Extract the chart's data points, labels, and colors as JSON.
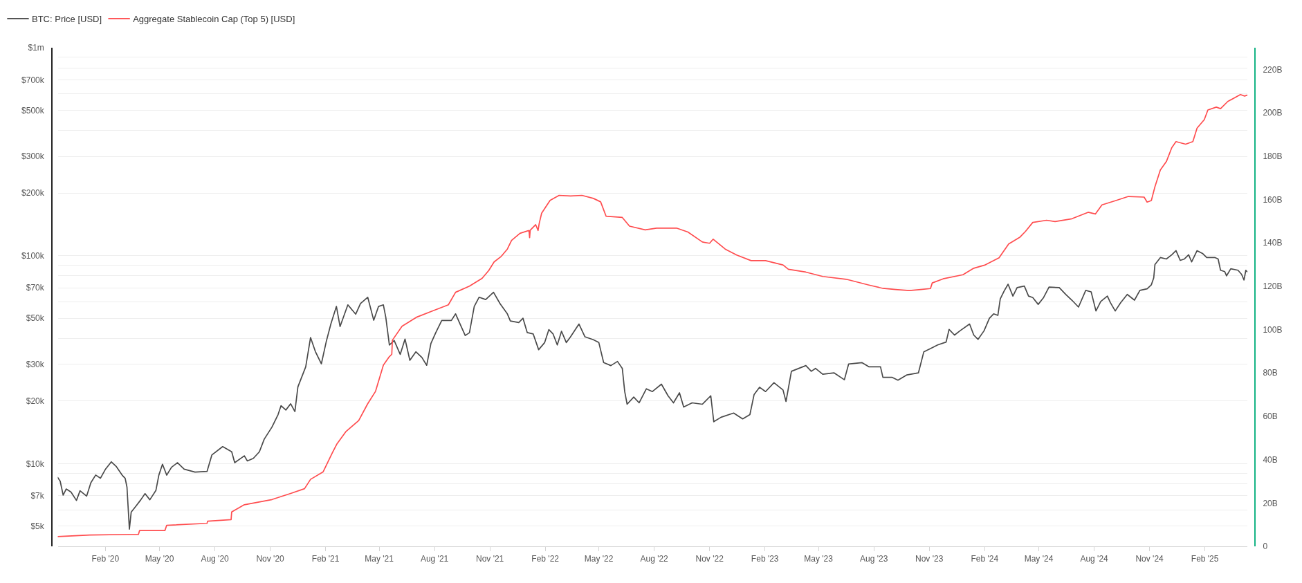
{
  "chart_data": {
    "type": "line",
    "legend": "top left",
    "grid": "y",
    "log": true,
    "line_style": "solid",
    "xlim": [
      "2019-11-14",
      "2025-04-13"
    ],
    "xticks": [
      {
        "value": "2020-02-01",
        "label": "Feb '20"
      },
      {
        "value": "2020-05-01",
        "label": "May '20"
      },
      {
        "value": "2020-08-01",
        "label": "Aug '20"
      },
      {
        "value": "2020-11-01",
        "label": "Nov '20"
      },
      {
        "value": "2021-02-01",
        "label": "Feb '21"
      },
      {
        "value": "2021-05-01",
        "label": "May '21"
      },
      {
        "value": "2021-08-01",
        "label": "Aug '21"
      },
      {
        "value": "2021-11-01",
        "label": "Nov '21"
      },
      {
        "value": "2022-02-01",
        "label": "Feb '22"
      },
      {
        "value": "2022-05-01",
        "label": "May '22"
      },
      {
        "value": "2022-08-01",
        "label": "Aug '22"
      },
      {
        "value": "2022-11-01",
        "label": "Nov '22"
      },
      {
        "value": "2023-02-01",
        "label": "Feb '23"
      },
      {
        "value": "2023-05-01",
        "label": "May '23"
      },
      {
        "value": "2023-08-01",
        "label": "Aug '23"
      },
      {
        "value": "2023-11-01",
        "label": "Nov '23"
      },
      {
        "value": "2024-02-01",
        "label": "Feb '24"
      },
      {
        "value": "2024-05-01",
        "label": "May '24"
      },
      {
        "value": "2024-08-01",
        "label": "Aug '24"
      },
      {
        "value": "2024-11-01",
        "label": "Nov '24"
      },
      {
        "value": "2025-02-01",
        "label": "Feb '25"
      }
    ],
    "ylim": [
      4000,
      1000000
    ],
    "yticks": [
      {
        "value": 5000,
        "label": "$5k"
      },
      {
        "value": 6000,
        "label": null
      },
      {
        "value": 7000,
        "label": "$7k"
      },
      {
        "value": 8000,
        "label": null
      },
      {
        "value": 9000,
        "label": null
      },
      {
        "value": 10000,
        "label": "$10k"
      },
      {
        "value": 20000,
        "label": "$20k"
      },
      {
        "value": 30000,
        "label": "$30k"
      },
      {
        "value": 40000,
        "label": null
      },
      {
        "value": 50000,
        "label": "$50k"
      },
      {
        "value": 60000,
        "label": null
      },
      {
        "value": 70000,
        "label": "$70k"
      },
      {
        "value": 80000,
        "label": null
      },
      {
        "value": 90000,
        "label": null
      },
      {
        "value": 100000,
        "label": "$100k"
      },
      {
        "value": 200000,
        "label": "$200k"
      },
      {
        "value": 300000,
        "label": "$300k"
      },
      {
        "value": 400000,
        "label": null
      },
      {
        "value": 500000,
        "label": "$500k"
      },
      {
        "value": 600000,
        "label": null
      },
      {
        "value": 700000,
        "label": "$700k"
      },
      {
        "value": 800000,
        "label": null
      },
      {
        "value": 900000,
        "label": null
      },
      {
        "value": 1000000,
        "label": "$1m"
      }
    ],
    "y2lim": [
      0,
      230
    ],
    "y2ticks": [
      0,
      {
        "value": 20,
        "label": "20B"
      },
      {
        "value": 40,
        "label": "40B"
      },
      {
        "value": 60,
        "label": "60B"
      },
      {
        "value": 80,
        "label": "80B"
      },
      {
        "value": 100,
        "label": "100B"
      },
      {
        "value": 120,
        "label": "120B"
      },
      {
        "value": 140,
        "label": "140B"
      },
      {
        "value": 160,
        "label": "160B"
      },
      {
        "value": 180,
        "label": "180B"
      },
      {
        "value": 200,
        "label": "200B"
      },
      {
        "value": 220,
        "label": "220B"
      }
    ],
    "series": [
      {
        "name": "BTC: Price [USD]",
        "color": "#4a4a4a",
        "x": [
          "2019-11-14",
          "2019-11-18",
          "2019-11-23",
          "2019-11-28",
          "2019-12-06",
          "2019-12-15",
          "2019-12-21",
          "2020-01-01",
          "2020-01-08",
          "2020-01-16",
          "2020-01-24",
          "2020-02-01",
          "2020-02-11",
          "2020-02-19",
          "2020-02-29",
          "2020-03-05",
          "2020-03-08",
          "2020-03-12",
          "2020-03-15",
          "2020-03-23",
          "2020-03-31",
          "2020-04-07",
          "2020-04-15",
          "2020-04-25",
          "2020-04-30",
          "2020-05-06",
          "2020-05-13",
          "2020-05-21",
          "2020-05-31",
          "2020-06-11",
          "2020-06-29",
          "2020-07-19",
          "2020-07-27",
          "2020-08-14",
          "2020-08-29",
          "2020-09-03",
          "2020-09-19",
          "2020-09-24",
          "2020-10-04",
          "2020-10-14",
          "2020-10-22",
          "2020-11-04",
          "2020-11-14",
          "2020-11-19",
          "2020-11-27",
          "2020-12-05",
          "2020-12-12",
          "2020-12-17",
          "2020-12-30",
          "2021-01-07",
          "2021-01-15",
          "2021-01-25",
          "2021-02-02",
          "2021-02-10",
          "2021-02-19",
          "2021-02-25",
          "2021-03-10",
          "2021-03-23",
          "2021-03-31",
          "2021-04-12",
          "2021-04-22",
          "2021-04-30",
          "2021-05-08",
          "2021-05-12",
          "2021-05-18",
          "2021-05-26",
          "2021-06-05",
          "2021-06-13",
          "2021-06-21",
          "2021-07-01",
          "2021-07-11",
          "2021-07-19",
          "2021-07-26",
          "2021-08-03",
          "2021-08-13",
          "2021-08-29",
          "2021-09-05",
          "2021-09-13",
          "2021-09-21",
          "2021-09-28",
          "2021-10-06",
          "2021-10-14",
          "2021-10-25",
          "2021-11-07",
          "2021-11-18",
          "2021-11-30",
          "2021-12-05",
          "2021-12-19",
          "2021-12-26",
          "2022-01-02",
          "2022-01-12",
          "2022-01-21",
          "2022-01-31",
          "2022-02-07",
          "2022-02-14",
          "2022-02-21",
          "2022-02-28",
          "2022-03-08",
          "2022-03-15",
          "2022-03-29",
          "2022-04-08",
          "2022-04-22",
          "2022-05-01",
          "2022-05-09",
          "2022-05-21",
          "2022-06-01",
          "2022-06-09",
          "2022-06-13",
          "2022-06-17",
          "2022-06-28",
          "2022-07-07",
          "2022-07-19",
          "2022-07-29",
          "2022-08-13",
          "2022-08-24",
          "2022-09-02",
          "2022-09-12",
          "2022-09-19",
          "2022-10-03",
          "2022-10-20",
          "2022-11-03",
          "2022-11-08",
          "2022-11-20",
          "2022-12-11",
          "2022-12-26",
          "2023-01-07",
          "2023-01-14",
          "2023-01-23",
          "2023-02-02",
          "2023-02-16",
          "2023-03-03",
          "2023-03-08",
          "2023-03-17",
          "2023-04-10",
          "2023-04-19",
          "2023-04-26",
          "2023-05-08",
          "2023-05-27",
          "2023-06-13",
          "2023-06-20",
          "2023-07-12",
          "2023-07-24",
          "2023-08-12",
          "2023-08-16",
          "2023-08-31",
          "2023-09-10",
          "2023-09-25",
          "2023-10-14",
          "2023-10-23",
          "2023-11-06",
          "2023-11-15",
          "2023-11-29",
          "2023-12-04",
          "2023-12-13",
          "2023-12-22",
          "2024-01-07",
          "2024-01-14",
          "2024-01-21",
          "2024-01-31",
          "2024-02-09",
          "2024-02-16",
          "2024-02-23",
          "2024-02-27",
          "2024-03-05",
          "2024-03-11",
          "2024-03-19",
          "2024-03-26",
          "2024-04-07",
          "2024-04-14",
          "2024-04-21",
          "2024-04-30",
          "2024-05-09",
          "2024-05-18",
          "2024-06-04",
          "2024-06-15",
          "2024-06-25",
          "2024-07-06",
          "2024-07-18",
          "2024-07-27",
          "2024-08-04",
          "2024-08-12",
          "2024-08-23",
          "2024-08-28",
          "2024-09-05",
          "2024-09-14",
          "2024-09-25",
          "2024-10-07",
          "2024-10-16",
          "2024-10-28",
          "2024-11-04",
          "2024-11-08",
          "2024-11-10",
          "2024-11-19",
          "2024-11-29",
          "2024-12-08",
          "2024-12-15",
          "2024-12-22",
          "2024-12-29",
          "2025-01-05",
          "2025-01-10",
          "2025-01-19",
          "2025-01-28",
          "2025-02-04",
          "2025-02-18",
          "2025-02-23",
          "2025-02-27",
          "2025-03-06",
          "2025-03-09",
          "2025-03-16",
          "2025-03-28",
          "2025-04-03",
          "2025-04-07",
          "2025-04-10",
          "2025-04-12"
        ],
        "values": [
          8570,
          8230,
          7050,
          7550,
          7300,
          6650,
          7400,
          6980,
          8090,
          8810,
          8510,
          9370,
          10200,
          9700,
          8800,
          8500,
          7700,
          4840,
          5840,
          6250,
          6700,
          7170,
          6700,
          7420,
          8810,
          9930,
          8800,
          9600,
          10100,
          9400,
          9100,
          9170,
          11000,
          12070,
          11400,
          10100,
          10900,
          10300,
          10600,
          11400,
          13100,
          15000,
          17200,
          19000,
          18100,
          19400,
          17800,
          23400,
          29200,
          40400,
          34600,
          30200,
          38500,
          47200,
          57000,
          45600,
          58000,
          52300,
          58900,
          63100,
          48900,
          57000,
          58000,
          50600,
          37200,
          39100,
          33500,
          39700,
          31400,
          34500,
          32400,
          29700,
          37800,
          42600,
          48800,
          48800,
          52500,
          46500,
          41300,
          42600,
          57000,
          63100,
          61500,
          66700,
          58700,
          52500,
          48500,
          47700,
          50000,
          42700,
          42000,
          35300,
          38200,
          44100,
          42000,
          37200,
          43300,
          38200,
          40700,
          46900,
          40700,
          39400,
          38200,
          30600,
          29600,
          31000,
          28700,
          22200,
          19300,
          20900,
          19600,
          22900,
          22200,
          24100,
          21200,
          19600,
          21900,
          18700,
          19600,
          19300,
          21200,
          15900,
          16700,
          17500,
          16400,
          17200,
          21500,
          23300,
          22200,
          24500,
          22600,
          19900,
          27800,
          29600,
          27800,
          28700,
          26900,
          27300,
          25300,
          30100,
          30600,
          29200,
          29200,
          26000,
          26000,
          25200,
          26700,
          27300,
          34500,
          36100,
          37200,
          38400,
          44200,
          41500,
          43500,
          46900,
          41500,
          39600,
          43500,
          50000,
          52500,
          51600,
          62000,
          68100,
          72900,
          63900,
          70200,
          71400,
          63900,
          62900,
          58300,
          62900,
          70600,
          70200,
          65000,
          61100,
          56600,
          68100,
          67000,
          54200,
          60200,
          63900,
          59400,
          54200,
          59400,
          65100,
          61100,
          68100,
          69300,
          72400,
          78200,
          90600,
          97900,
          96400,
          101000,
          105700,
          94900,
          96400,
          101000,
          93300,
          105700,
          102500,
          97900,
          97900,
          96400,
          85100,
          83800,
          80000,
          86500,
          85100,
          81300,
          76400,
          85100,
          83800
        ]
      },
      {
        "name": "Aggregate Stablecoin Cap (Top 5) [USD]",
        "color": "#ff4d4f",
        "axis": "y2",
        "x": [
          "2019-11-14",
          "2020-01-06",
          "2020-03-13",
          "2020-03-27",
          "2020-03-29",
          "2020-05-10",
          "2020-05-13",
          "2020-07-19",
          "2020-07-20",
          "2020-08-28",
          "2020-08-29",
          "2020-09-19",
          "2020-11-04",
          "2020-12-05",
          "2020-12-28",
          "2021-01-07",
          "2021-01-28",
          "2021-02-12",
          "2021-02-20",
          "2021-03-07",
          "2021-03-28",
          "2021-04-12",
          "2021-04-25",
          "2021-05-08",
          "2021-05-17",
          "2021-05-22",
          "2021-05-23",
          "2021-06-08",
          "2021-07-03",
          "2021-07-29",
          "2021-08-24",
          "2021-09-05",
          "2021-09-28",
          "2021-10-19",
          "2021-10-30",
          "2021-11-08",
          "2021-11-20",
          "2021-11-30",
          "2021-12-07",
          "2021-12-21",
          "2022-01-05",
          "2022-01-06",
          "2022-01-07",
          "2022-01-16",
          "2022-01-20",
          "2022-01-22",
          "2022-01-26",
          "2022-02-09",
          "2022-02-24",
          "2022-03-15",
          "2022-04-03",
          "2022-04-22",
          "2022-05-04",
          "2022-05-13",
          "2022-06-09",
          "2022-06-21",
          "2022-07-17",
          "2022-08-05",
          "2022-09-07",
          "2022-09-26",
          "2022-10-20",
          "2022-11-01",
          "2022-11-07",
          "2022-11-27",
          "2022-12-16",
          "2023-01-09",
          "2023-02-02",
          "2023-03-03",
          "2023-03-12",
          "2023-04-10",
          "2023-05-08",
          "2023-06-16",
          "2023-07-24",
          "2023-08-16",
          "2023-09-06",
          "2023-09-29",
          "2023-10-18",
          "2023-11-03",
          "2023-11-06",
          "2023-11-24",
          "2023-12-27",
          "2024-01-14",
          "2024-02-02",
          "2024-02-25",
          "2024-03-12",
          "2024-03-31",
          "2024-04-09",
          "2024-04-21",
          "2024-05-14",
          "2024-05-28",
          "2024-06-25",
          "2024-07-22",
          "2024-08-03",
          "2024-08-14",
          "2024-09-06",
          "2024-09-27",
          "2024-10-23",
          "2024-10-28",
          "2024-11-04",
          "2024-11-10",
          "2024-11-19",
          "2024-11-29",
          "2024-12-08",
          "2024-12-15",
          "2024-12-31",
          "2025-01-12",
          "2025-01-19",
          "2025-01-31",
          "2025-02-06",
          "2025-02-20",
          "2025-02-27",
          "2025-03-11",
          "2025-04-01",
          "2025-04-08",
          "2025-04-12"
        ],
        "values": [
          4.5,
          5.2,
          5.5,
          5.5,
          7.3,
          7.3,
          9.7,
          10.6,
          11.6,
          12.3,
          15.9,
          19.2,
          21.6,
          24.4,
          26.6,
          30.9,
          34.4,
          43.0,
          47.3,
          53.0,
          58.0,
          65.8,
          71.5,
          83.6,
          87.2,
          88.6,
          95.1,
          101.5,
          105.8,
          108.6,
          111.4,
          117.2,
          120.0,
          123.6,
          127.2,
          131.2,
          133.8,
          137.1,
          141.1,
          144.4,
          145.7,
          142.4,
          145.8,
          148.4,
          145.7,
          149.0,
          153.7,
          159.6,
          161.9,
          161.6,
          161.9,
          160.5,
          158.9,
          152.3,
          151.7,
          147.7,
          146.0,
          146.8,
          146.8,
          145.0,
          140.4,
          139.8,
          141.7,
          137.1,
          134.4,
          131.8,
          131.8,
          129.8,
          127.8,
          126.5,
          124.5,
          123.2,
          120.5,
          119.0,
          118.5,
          118.0,
          118.5,
          118.9,
          121.5,
          123.4,
          125.3,
          128.3,
          129.8,
          133.1,
          139.5,
          142.7,
          145.3,
          149.4,
          150.4,
          149.8,
          151.1,
          154.1,
          153.3,
          157.5,
          159.5,
          161.4,
          161.1,
          158.8,
          159.5,
          165.9,
          173.6,
          177.5,
          183.9,
          186.7,
          185.5,
          186.7,
          192.9,
          196.8,
          201.3,
          202.6,
          201.9,
          205.2,
          208.4,
          207.7,
          208.1
        ]
      }
    ]
  }
}
